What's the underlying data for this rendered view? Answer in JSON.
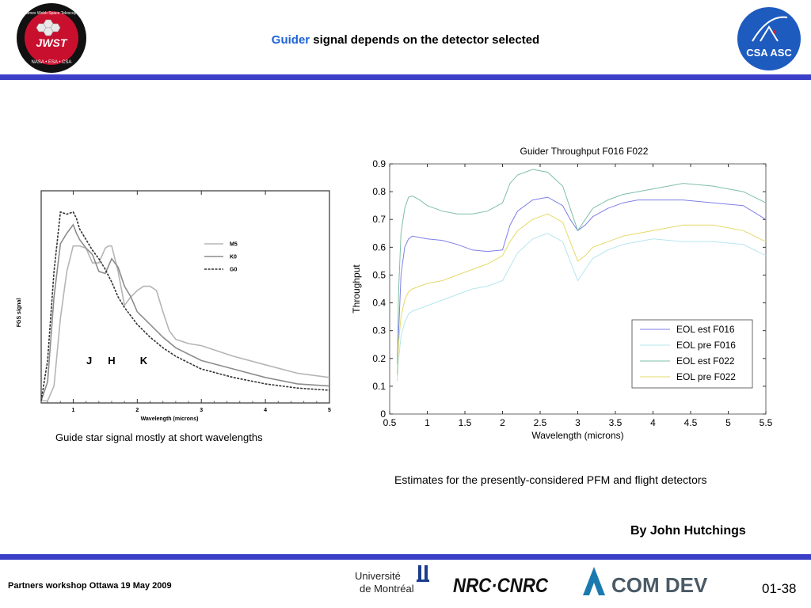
{
  "slide": {
    "title_accent": "Guider",
    "title_rest": " signal depends on the detector selected",
    "left_caption": "Guide star signal  mostly at short wavelengths",
    "right_caption": "Estimates for the presently-considered PFM and flight detectors",
    "author": "By John Hutchings",
    "footer_left": "Partners workshop Ottawa 19 May 2009",
    "page_number": "01-38"
  },
  "logos": {
    "jwst": {
      "main": "JWST",
      "ring": "James Webb Space Telescope",
      "bottom": "NASA • ESA • CSA"
    },
    "csa": {
      "text": "CSA ASC"
    },
    "montreal": {
      "line1": "Université",
      "line2": "de Montréal"
    },
    "nrc": {
      "text": "NRC·CNRC"
    },
    "comdev": {
      "text": "COM DEV"
    }
  },
  "colors": {
    "accent": "#1f63d6",
    "bar": "#3b3fc8",
    "csa_blue": "#1e5bbf",
    "jwst_red": "#c8102e"
  },
  "chart_data": [
    {
      "type": "line",
      "xlabel": "Wavelength (microns)",
      "ylabel": "FGS signal",
      "xlim": [
        0.5,
        5
      ],
      "x_ticks": [
        "1",
        "2",
        "3",
        "4",
        "5"
      ],
      "annotations": [
        "J",
        "H",
        "K"
      ],
      "series": [
        {
          "name": "M5",
          "x": [
            0.5,
            0.6,
            0.7,
            0.8,
            0.9,
            1.0,
            1.1,
            1.2,
            1.3,
            1.4,
            1.5,
            1.55,
            1.6,
            1.7,
            1.8,
            1.9,
            2.0,
            2.1,
            2.2,
            2.3,
            2.4,
            2.5,
            2.6,
            2.8,
            3.0,
            3.2,
            3.5,
            4.0,
            4.5,
            5.0
          ],
          "y": [
            0.01,
            0.01,
            0.08,
            0.4,
            0.62,
            0.74,
            0.74,
            0.73,
            0.66,
            0.66,
            0.73,
            0.74,
            0.74,
            0.62,
            0.46,
            0.5,
            0.53,
            0.55,
            0.55,
            0.53,
            0.43,
            0.34,
            0.3,
            0.28,
            0.27,
            0.25,
            0.22,
            0.18,
            0.14,
            0.12
          ]
        },
        {
          "name": "K0",
          "x": [
            0.5,
            0.6,
            0.7,
            0.8,
            0.9,
            1.0,
            1.05,
            1.1,
            1.2,
            1.3,
            1.4,
            1.5,
            1.6,
            1.7,
            1.8,
            1.9,
            2.0,
            2.2,
            2.4,
            2.6,
            2.8,
            3.0,
            3.5,
            4.0,
            4.5,
            5.0
          ],
          "y": [
            0.01,
            0.1,
            0.5,
            0.75,
            0.8,
            0.84,
            0.8,
            0.77,
            0.73,
            0.7,
            0.62,
            0.61,
            0.68,
            0.64,
            0.55,
            0.5,
            0.43,
            0.37,
            0.31,
            0.26,
            0.23,
            0.2,
            0.16,
            0.12,
            0.09,
            0.08
          ]
        },
        {
          "name": "G0",
          "x": [
            0.5,
            0.6,
            0.7,
            0.8,
            0.9,
            1.0,
            1.05,
            1.1,
            1.2,
            1.3,
            1.4,
            1.5,
            1.6,
            1.7,
            1.8,
            2.0,
            2.2,
            2.4,
            2.6,
            2.8,
            3.0,
            3.5,
            4.0,
            4.5,
            5.0
          ],
          "y": [
            0.01,
            0.2,
            0.62,
            0.9,
            0.89,
            0.9,
            0.87,
            0.82,
            0.77,
            0.72,
            0.68,
            0.63,
            0.57,
            0.5,
            0.45,
            0.37,
            0.31,
            0.26,
            0.22,
            0.19,
            0.16,
            0.12,
            0.09,
            0.07,
            0.06
          ]
        }
      ]
    },
    {
      "type": "line",
      "title": "Guider Throughput F016 F022",
      "xlabel": "Wavelength (microns)",
      "ylabel": "Throughput",
      "xlim": [
        0.5,
        5.5
      ],
      "ylim": [
        0,
        0.9
      ],
      "x_ticks": [
        "0.5",
        "1",
        "1.5",
        "2",
        "2.5",
        "3",
        "3.5",
        "4",
        "4.5",
        "5",
        "5.5"
      ],
      "y_ticks": [
        "0",
        "0.1",
        "0.2",
        "0.3",
        "0.4",
        "0.5",
        "0.6",
        "0.7",
        "0.8",
        "0.9"
      ],
      "legend_position": "lower-right",
      "series": [
        {
          "name": "EOL est F016",
          "color": "#7f7fe8",
          "x": [
            0.6,
            0.62,
            0.65,
            0.7,
            0.75,
            0.8,
            0.9,
            1.0,
            1.2,
            1.4,
            1.6,
            1.8,
            2.0,
            2.1,
            2.2,
            2.4,
            2.6,
            2.8,
            2.9,
            3.0,
            3.1,
            3.2,
            3.4,
            3.6,
            3.8,
            4.0,
            4.4,
            4.8,
            5.2,
            5.5
          ],
          "y": [
            0.14,
            0.3,
            0.5,
            0.6,
            0.63,
            0.64,
            0.635,
            0.63,
            0.625,
            0.61,
            0.59,
            0.585,
            0.59,
            0.68,
            0.73,
            0.77,
            0.78,
            0.75,
            0.7,
            0.66,
            0.68,
            0.71,
            0.74,
            0.76,
            0.77,
            0.77,
            0.77,
            0.76,
            0.75,
            0.7
          ]
        },
        {
          "name": "EOL pre F016",
          "color": "#b6e6ee",
          "x": [
            0.6,
            0.62,
            0.65,
            0.7,
            0.75,
            0.8,
            0.9,
            1.0,
            1.2,
            1.4,
            1.6,
            1.8,
            2.0,
            2.1,
            2.2,
            2.4,
            2.6,
            2.8,
            2.9,
            3.0,
            3.1,
            3.2,
            3.4,
            3.6,
            3.8,
            4.0,
            4.4,
            4.8,
            5.2,
            5.5
          ],
          "y": [
            0.12,
            0.2,
            0.28,
            0.33,
            0.36,
            0.37,
            0.38,
            0.39,
            0.41,
            0.43,
            0.45,
            0.46,
            0.48,
            0.53,
            0.58,
            0.63,
            0.65,
            0.62,
            0.55,
            0.48,
            0.52,
            0.56,
            0.59,
            0.61,
            0.62,
            0.63,
            0.62,
            0.62,
            0.61,
            0.57
          ]
        },
        {
          "name": "EOL est F022",
          "color": "#7fbfa6",
          "x": [
            0.6,
            0.62,
            0.65,
            0.7,
            0.75,
            0.8,
            0.9,
            1.0,
            1.2,
            1.4,
            1.6,
            1.8,
            2.0,
            2.1,
            2.2,
            2.4,
            2.6,
            2.8,
            2.9,
            3.0,
            3.1,
            3.2,
            3.4,
            3.6,
            3.8,
            4.0,
            4.4,
            4.8,
            5.2,
            5.5
          ],
          "y": [
            0.18,
            0.45,
            0.65,
            0.74,
            0.78,
            0.785,
            0.77,
            0.75,
            0.73,
            0.72,
            0.72,
            0.73,
            0.76,
            0.83,
            0.86,
            0.88,
            0.87,
            0.82,
            0.74,
            0.66,
            0.7,
            0.74,
            0.77,
            0.79,
            0.8,
            0.81,
            0.83,
            0.82,
            0.8,
            0.76
          ]
        },
        {
          "name": "EOL pre F022",
          "color": "#e6d96a",
          "x": [
            0.6,
            0.62,
            0.65,
            0.7,
            0.75,
            0.8,
            0.9,
            1.0,
            1.2,
            1.4,
            1.6,
            1.8,
            2.0,
            2.1,
            2.2,
            2.4,
            2.6,
            2.8,
            2.9,
            3.0,
            3.1,
            3.2,
            3.4,
            3.6,
            3.8,
            4.0,
            4.4,
            4.8,
            5.2,
            5.5
          ],
          "y": [
            0.14,
            0.26,
            0.35,
            0.41,
            0.44,
            0.45,
            0.46,
            0.47,
            0.48,
            0.5,
            0.52,
            0.54,
            0.57,
            0.62,
            0.66,
            0.7,
            0.72,
            0.69,
            0.62,
            0.55,
            0.57,
            0.6,
            0.62,
            0.64,
            0.65,
            0.66,
            0.68,
            0.68,
            0.66,
            0.62
          ]
        }
      ]
    }
  ]
}
